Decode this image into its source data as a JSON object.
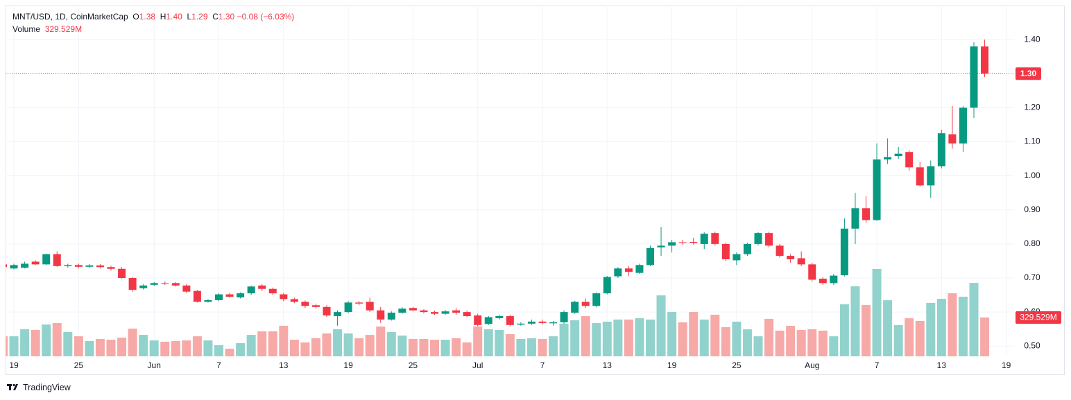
{
  "chart_data": {
    "type": "candlestick",
    "title": "MNT/USD, 1D, CoinMarketCap",
    "header": {
      "open_label": "O",
      "open": "1.38",
      "high_label": "H",
      "high": "1.40",
      "low_label": "L",
      "low": "1.29",
      "close_label": "C",
      "close": "1.30",
      "change": "−0.08 (−6.03%)"
    },
    "last_price_label": "1.30",
    "brand": "TradingView",
    "up_color": "#089981",
    "down_color": "#f23645",
    "volume_up_color": "#92d2cc",
    "volume_down_color": "#f7a9a7",
    "grid": true,
    "categories": [
      null,
      "19",
      null,
      null,
      null,
      null,
      null,
      "25",
      null,
      null,
      null,
      null,
      null,
      null,
      "Jun",
      null,
      null,
      null,
      null,
      null,
      "7",
      null,
      null,
      null,
      null,
      null,
      "13",
      null,
      null,
      null,
      null,
      null,
      "19",
      null,
      null,
      null,
      null,
      null,
      "25",
      null,
      null,
      null,
      null,
      null,
      "Jul",
      null,
      null,
      null,
      null,
      null,
      "7",
      null,
      null,
      null,
      null,
      null,
      "13",
      null,
      null,
      null,
      null,
      null,
      "19",
      null,
      null,
      null,
      null,
      null,
      "25",
      null,
      null,
      null,
      null,
      null,
      null,
      "Aug",
      null,
      null,
      null,
      null,
      null,
      "7",
      null,
      null,
      null,
      null,
      null,
      "13",
      null,
      null,
      null,
      null,
      null,
      "19"
    ],
    "open": [
      0.74,
      0.728,
      0.73,
      0.748,
      0.74,
      0.77,
      0.735,
      0.738,
      0.733,
      0.737,
      0.732,
      0.727,
      0.7,
      0.67,
      0.68,
      0.685,
      0.685,
      0.678,
      0.662,
      0.63,
      0.635,
      0.652,
      0.643,
      0.655,
      0.678,
      0.668,
      0.652,
      0.638,
      0.63,
      0.62,
      0.615,
      0.588,
      0.6,
      0.628,
      0.63,
      0.605,
      0.578,
      0.598,
      0.612,
      0.605,
      0.6,
      0.595,
      0.605,
      0.6,
      0.59,
      0.565,
      0.582,
      0.588,
      0.563,
      0.566,
      0.572,
      0.567,
      0.57,
      0.598,
      0.63,
      0.618,
      0.655,
      0.705,
      0.728,
      0.715,
      0.738,
      0.79,
      0.795,
      0.805,
      0.806,
      0.8,
      0.832,
      0.8,
      0.752,
      0.77,
      0.8,
      0.832,
      0.795,
      0.765,
      0.758,
      0.74,
      0.698,
      0.685,
      0.708,
      0.845,
      0.905,
      0.87,
      1.048,
      1.058,
      1.07,
      1.025,
      0.972,
      1.028,
      1.122,
      1.095,
      1.2,
      1.38,
      null,
      null
    ],
    "high": [
      0.745,
      0.742,
      0.748,
      0.752,
      0.772,
      0.778,
      0.742,
      0.742,
      0.741,
      0.741,
      0.736,
      0.732,
      0.702,
      0.682,
      0.688,
      0.69,
      0.688,
      0.682,
      0.665,
      0.638,
      0.655,
      0.656,
      0.658,
      0.678,
      0.682,
      0.672,
      0.656,
      0.642,
      0.634,
      0.625,
      0.62,
      0.605,
      0.632,
      0.632,
      0.642,
      0.615,
      0.602,
      0.614,
      0.615,
      0.608,
      0.604,
      0.606,
      0.612,
      0.604,
      0.595,
      0.588,
      0.592,
      0.592,
      0.57,
      0.578,
      0.578,
      0.574,
      0.605,
      0.633,
      0.64,
      0.658,
      0.706,
      0.732,
      0.735,
      0.742,
      0.795,
      0.85,
      0.812,
      0.812,
      0.818,
      0.834,
      0.836,
      0.804,
      0.775,
      0.804,
      0.835,
      0.836,
      0.8,
      0.77,
      0.778,
      0.745,
      0.702,
      0.712,
      0.875,
      0.95,
      0.94,
      1.095,
      1.11,
      1.085,
      1.075,
      1.04,
      1.045,
      1.135,
      1.205,
      1.205,
      1.392,
      1.4,
      null,
      null
    ],
    "low": [
      0.728,
      0.725,
      0.728,
      0.738,
      0.738,
      0.733,
      0.73,
      0.728,
      0.73,
      0.728,
      0.722,
      0.698,
      0.66,
      0.666,
      0.676,
      0.68,
      0.675,
      0.656,
      0.628,
      0.628,
      0.632,
      0.642,
      0.64,
      0.65,
      0.662,
      0.65,
      0.632,
      0.626,
      0.612,
      0.61,
      0.586,
      0.56,
      0.597,
      0.62,
      0.6,
      0.568,
      0.575,
      0.595,
      0.602,
      0.596,
      0.592,
      0.592,
      0.592,
      0.585,
      0.558,
      0.562,
      0.578,
      0.558,
      0.56,
      0.562,
      0.564,
      0.56,
      0.565,
      0.595,
      0.612,
      0.614,
      0.652,
      0.7,
      0.705,
      0.712,
      0.735,
      0.765,
      0.775,
      0.798,
      0.798,
      0.785,
      0.795,
      0.75,
      0.738,
      0.765,
      0.796,
      0.79,
      0.76,
      0.745,
      0.735,
      0.69,
      0.68,
      0.68,
      0.705,
      0.8,
      0.862,
      0.868,
      1.035,
      1.05,
      1.015,
      0.968,
      0.935,
      1.022,
      1.08,
      1.07,
      1.17,
      1.29,
      null,
      null
    ],
    "close": [
      0.732,
      0.738,
      0.742,
      0.74,
      0.77,
      0.735,
      0.738,
      0.733,
      0.737,
      0.732,
      0.727,
      0.7,
      0.665,
      0.678,
      0.685,
      0.683,
      0.678,
      0.66,
      0.63,
      0.635,
      0.652,
      0.645,
      0.655,
      0.675,
      0.668,
      0.655,
      0.638,
      0.63,
      0.618,
      0.615,
      0.59,
      0.6,
      0.628,
      0.625,
      0.605,
      0.578,
      0.598,
      0.61,
      0.605,
      0.6,
      0.595,
      0.602,
      0.598,
      0.588,
      0.562,
      0.585,
      0.588,
      0.562,
      0.566,
      0.572,
      0.568,
      0.57,
      0.6,
      0.63,
      0.618,
      0.655,
      0.703,
      0.728,
      0.718,
      0.738,
      0.788,
      0.795,
      0.805,
      0.803,
      0.803,
      0.83,
      0.8,
      0.755,
      0.77,
      0.8,
      0.832,
      0.795,
      0.765,
      0.755,
      0.74,
      0.695,
      0.685,
      0.707,
      0.845,
      0.905,
      0.87,
      1.048,
      1.055,
      1.065,
      1.025,
      0.972,
      1.028,
      1.125,
      1.095,
      1.2,
      1.38,
      1.3,
      null,
      null
    ],
    "volume": {
      "name": "Volume",
      "values": [
        170,
        170,
        230,
        224,
        270,
        282,
        206,
        170,
        130,
        147,
        141,
        159,
        235,
        182,
        135,
        124,
        130,
        135,
        170,
        135,
        94,
        65,
        112,
        182,
        212,
        212,
        259,
        141,
        118,
        153,
        194,
        230,
        194,
        153,
        182,
        253,
        206,
        176,
        147,
        147,
        141,
        141,
        153,
        118,
        253,
        230,
        224,
        188,
        147,
        153,
        147,
        170,
        276,
        306,
        341,
        282,
        294,
        312,
        312,
        323,
        312,
        517,
        376,
        288,
        376,
        312,
        353,
        247,
        294,
        229,
        170,
        318,
        218,
        259,
        224,
        230,
        218,
        170,
        441,
        594,
        435,
        741,
        476,
        265,
        323,
        300,
        453,
        488,
        535,
        506,
        623,
        329.529,
        null,
        null
      ],
      "value_labels": [
        null,
        null,
        null,
        null,
        null,
        null,
        null,
        null,
        null,
        null,
        null,
        null,
        null,
        null,
        null,
        null,
        null,
        null,
        null,
        null,
        null,
        null,
        null,
        null,
        null,
        null,
        null,
        null,
        null,
        null,
        null,
        null,
        null,
        null,
        null,
        null,
        null,
        null,
        null,
        null,
        null,
        null,
        null,
        null,
        null,
        null,
        null,
        null,
        null,
        null,
        null,
        null,
        null,
        null,
        null,
        null,
        null,
        null,
        null,
        null,
        null,
        null,
        null,
        null,
        null,
        null,
        null,
        null,
        null,
        null,
        null,
        null,
        null,
        null,
        null,
        null,
        null,
        null,
        null,
        null,
        null,
        null,
        null,
        null,
        null,
        null,
        null,
        null,
        null,
        null,
        null,
        "329.529M",
        null,
        null
      ]
    },
    "ylim": [
      0.47,
      1.5
    ],
    "yticks": [
      {
        "value": 1.4,
        "label": "1.40"
      },
      {
        "value": 1.3,
        "label": "1.30"
      },
      {
        "value": 1.2,
        "label": "1.20"
      },
      {
        "value": 1.1,
        "label": "1.10"
      },
      {
        "value": 1.0,
        "label": "1.00"
      },
      {
        "value": 0.9,
        "label": "0.90"
      },
      {
        "value": 0.8,
        "label": "0.80"
      },
      {
        "value": 0.7,
        "label": "0.70"
      },
      {
        "value": 0.6,
        "label": "0.60"
      },
      {
        "value": 0.5,
        "label": "0.50"
      }
    ]
  }
}
